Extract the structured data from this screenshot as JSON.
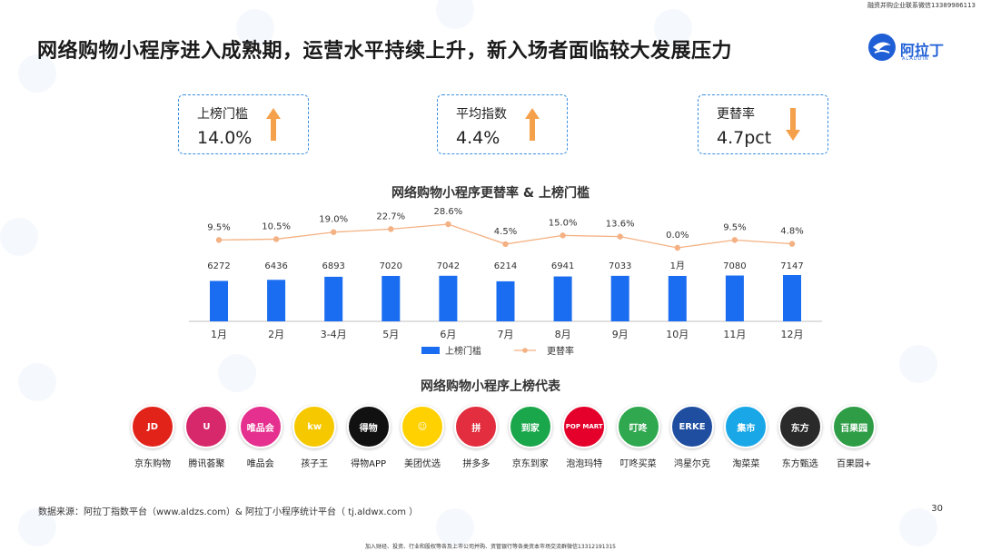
{
  "top_note": "融资并购企业联系微信13389986113",
  "title": "网络购物小程序进入成熟期，运营水平持续上升，新入场者面临较大发展压力",
  "logo": {
    "text": "阿拉丁",
    "subtext": "ALADDIN",
    "color": "#1f5fd6"
  },
  "kpis": [
    {
      "label": "上榜门槛",
      "value": "14.0%",
      "direction": "up",
      "icon": "arrow-up-icon",
      "color": "#f5a04a"
    },
    {
      "label": "平均指数",
      "value": "4.4%",
      "direction": "up",
      "icon": "arrow-up-icon",
      "color": "#f5a04a"
    },
    {
      "label": "更替率",
      "value": "4.7pct",
      "direction": "down",
      "icon": "arrow-down-icon",
      "color": "#f5a04a"
    }
  ],
  "chart_data": {
    "type": "bar",
    "title": "网络购物小程序更替率 & 上榜门槛",
    "categories": [
      "1月",
      "2月",
      "3-4月",
      "5月",
      "6月",
      "7月",
      "8月",
      "9月",
      "10月",
      "11月",
      "12月"
    ],
    "bar_labels": [
      "6272",
      "6436",
      "6893",
      "7020",
      "7042",
      "6214",
      "6941",
      "7033",
      "1月",
      "7080",
      "7147"
    ],
    "series": [
      {
        "name": "上榜门槛",
        "kind": "bar",
        "color": "#1a6cf0",
        "values": [
          6272,
          6436,
          6893,
          7020,
          7042,
          6214,
          6941,
          7033,
          null,
          7080,
          7147
        ]
      },
      {
        "name": "更替率",
        "kind": "line",
        "color": "#f4b183",
        "values": [
          9.5,
          10.5,
          19.0,
          22.7,
          28.6,
          4.5,
          15.0,
          13.6,
          0.0,
          9.5,
          4.8
        ],
        "labels": [
          "9.5%",
          "10.5%",
          "19.0%",
          "22.7%",
          "28.6%",
          "4.5%",
          "15.0%",
          "13.6%",
          "0.0%",
          "9.5%",
          "4.8%"
        ]
      }
    ],
    "legend_position": "bottom",
    "grid": false
  },
  "representatives": {
    "title": "网络购物小程序上榜代表",
    "apps": [
      {
        "name": "京东购物",
        "icon_text": "JD",
        "color": "#e2231a"
      },
      {
        "name": "腾讯荟聚",
        "icon_text": "U",
        "color": "#d6286b"
      },
      {
        "name": "唯品会",
        "icon_text": "唯品会",
        "color": "#e5308f"
      },
      {
        "name": "孩子王",
        "icon_text": "kw",
        "color": "#f6c800"
      },
      {
        "name": "得物APP",
        "icon_text": "得物",
        "color": "#111111"
      },
      {
        "name": "美团优选",
        "icon_text": "☺",
        "color": "#ffd100"
      },
      {
        "name": "拼多多",
        "icon_text": "拼",
        "color": "#e22e3e"
      },
      {
        "name": "京东到家",
        "icon_text": "到家",
        "color": "#1aa64a"
      },
      {
        "name": "泡泡玛特",
        "icon_text": "POP MART",
        "color": "#e4002b"
      },
      {
        "name": "叮咚买菜",
        "icon_text": "叮咚",
        "color": "#2fa84f"
      },
      {
        "name": "鸿星尔克",
        "icon_text": "ERKE",
        "color": "#1f4ea0"
      },
      {
        "name": "淘菜菜",
        "icon_text": "集市",
        "color": "#19a7e8"
      },
      {
        "name": "东方甄选",
        "icon_text": "东方",
        "color": "#2a2a2a"
      },
      {
        "name": "百果园+",
        "icon_text": "百果园",
        "color": "#2e9d46"
      }
    ]
  },
  "source": "数据来源：阿拉丁指数平台（www.aldzs.com）& 阿拉丁小程序统计平台（ tj.aldwx.com ）",
  "page_number": "30",
  "bottom_note": "加入财经、投资、行业和股权等各及上市公司并购、资管银行等各类资本市场交流群微信13312191315"
}
